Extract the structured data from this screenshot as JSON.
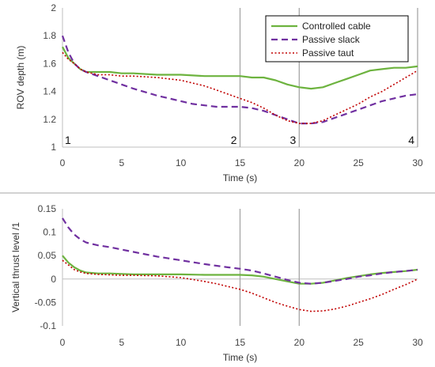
{
  "colors": {
    "controlled": "#6db33f",
    "slack": "#7030a0",
    "taut": "#c00000",
    "separator": "#a6a6a6",
    "marker_line": "#a6a6a6"
  },
  "chart_data": [
    {
      "type": "line",
      "xlabel": "Time (s)",
      "ylabel": "ROV depth (m)",
      "xlim": [
        0,
        30
      ],
      "ylim": [
        1,
        2
      ],
      "x_ticks": [
        "0",
        "5",
        "10",
        "15",
        "20",
        "25",
        "30"
      ],
      "y_ticks": [
        "1",
        "1.2",
        "1.4",
        "1.6",
        "1.8",
        "2"
      ],
      "legend": {
        "placement": "top-right",
        "entries": [
          "Controlled cable",
          "Passive slack",
          "Passive taut"
        ]
      },
      "vertical_markers": [
        {
          "x": 0,
          "label": "1"
        },
        {
          "x": 15,
          "label": "2"
        },
        {
          "x": 20,
          "label": "3"
        },
        {
          "x": 30,
          "label": "4"
        }
      ],
      "series": [
        {
          "name": "Controlled cable",
          "x": [
            0,
            0.5,
            1,
            1.5,
            2,
            3,
            4,
            5,
            6,
            8,
            10,
            12,
            14,
            15,
            16,
            17,
            18,
            19,
            20,
            21,
            22,
            23,
            24,
            25,
            26,
            27,
            28,
            29,
            30
          ],
          "values": [
            1.72,
            1.64,
            1.6,
            1.56,
            1.54,
            1.54,
            1.54,
            1.53,
            1.53,
            1.52,
            1.52,
            1.51,
            1.51,
            1.51,
            1.5,
            1.5,
            1.48,
            1.45,
            1.43,
            1.42,
            1.43,
            1.46,
            1.49,
            1.52,
            1.55,
            1.56,
            1.57,
            1.57,
            1.58
          ]
        },
        {
          "name": "Passive slack",
          "x": [
            0,
            0.5,
            1,
            1.5,
            2,
            3,
            4,
            5,
            6,
            8,
            10,
            11,
            12,
            13,
            14,
            15,
            16,
            17,
            18,
            19,
            20,
            21,
            22,
            23,
            24,
            25,
            26,
            27,
            28,
            29,
            30
          ],
          "values": [
            1.8,
            1.68,
            1.6,
            1.56,
            1.54,
            1.51,
            1.48,
            1.45,
            1.42,
            1.37,
            1.33,
            1.31,
            1.3,
            1.29,
            1.29,
            1.29,
            1.28,
            1.26,
            1.23,
            1.2,
            1.17,
            1.17,
            1.18,
            1.21,
            1.24,
            1.27,
            1.3,
            1.33,
            1.35,
            1.37,
            1.38
          ]
        },
        {
          "name": "Passive taut",
          "x": [
            0,
            0.5,
            1,
            1.5,
            2,
            3,
            4,
            5,
            6,
            8,
            10,
            12,
            13,
            14,
            15,
            16,
            17,
            18,
            19,
            20,
            21,
            22,
            23,
            24,
            25,
            26,
            27,
            28,
            29,
            30
          ],
          "values": [
            1.68,
            1.63,
            1.6,
            1.56,
            1.54,
            1.52,
            1.52,
            1.51,
            1.51,
            1.5,
            1.48,
            1.44,
            1.41,
            1.38,
            1.35,
            1.32,
            1.28,
            1.23,
            1.19,
            1.17,
            1.17,
            1.19,
            1.23,
            1.27,
            1.31,
            1.36,
            1.4,
            1.45,
            1.5,
            1.55
          ]
        }
      ]
    },
    {
      "type": "line",
      "xlabel": "Time (s)",
      "ylabel": "Vertical thrust level /1",
      "xlim": [
        0,
        30
      ],
      "ylim": [
        -0.1,
        0.15
      ],
      "x_ticks": [
        "0",
        "5",
        "10",
        "15",
        "20",
        "25",
        "30"
      ],
      "y_ticks": [
        "-0.1",
        "-0.05",
        "0",
        "0.05",
        "0.1",
        "0.15"
      ],
      "vertical_markers": [
        {
          "x": 15
        },
        {
          "x": 20
        }
      ],
      "series": [
        {
          "name": "Controlled cable",
          "x": [
            0,
            0.5,
            1,
            1.5,
            2,
            3,
            4,
            5,
            6,
            8,
            10,
            12,
            14,
            15,
            16,
            17,
            18,
            19,
            20,
            21,
            22,
            23,
            24,
            25,
            26,
            27,
            28,
            29,
            30
          ],
          "values": [
            0.05,
            0.035,
            0.025,
            0.018,
            0.014,
            0.012,
            0.012,
            0.011,
            0.01,
            0.01,
            0.01,
            0.009,
            0.009,
            0.009,
            0.008,
            0.005,
            0.0,
            -0.005,
            -0.01,
            -0.01,
            -0.008,
            -0.003,
            0.002,
            0.006,
            0.01,
            0.013,
            0.015,
            0.017,
            0.02
          ]
        },
        {
          "name": "Passive slack",
          "x": [
            0,
            0.5,
            1,
            1.5,
            2,
            3,
            4,
            5,
            6,
            8,
            10,
            12,
            14,
            15,
            16,
            17,
            18,
            19,
            20,
            21,
            22,
            23,
            24,
            25,
            26,
            27,
            28,
            29,
            30
          ],
          "values": [
            0.13,
            0.11,
            0.095,
            0.085,
            0.078,
            0.072,
            0.068,
            0.063,
            0.058,
            0.048,
            0.04,
            0.032,
            0.025,
            0.022,
            0.018,
            0.012,
            0.005,
            -0.002,
            -0.008,
            -0.01,
            -0.008,
            -0.004,
            0.0,
            0.005,
            0.008,
            0.012,
            0.015,
            0.017,
            0.02
          ]
        },
        {
          "name": "Passive taut",
          "x": [
            0,
            0.5,
            1,
            1.5,
            2,
            3,
            4,
            5,
            6,
            8,
            10,
            12,
            13,
            14,
            15,
            16,
            17,
            18,
            19,
            20,
            21,
            22,
            23,
            24,
            25,
            26,
            27,
            28,
            29,
            30
          ],
          "values": [
            0.04,
            0.03,
            0.02,
            0.015,
            0.012,
            0.01,
            0.009,
            0.008,
            0.008,
            0.007,
            0.003,
            -0.005,
            -0.01,
            -0.016,
            -0.022,
            -0.03,
            -0.04,
            -0.05,
            -0.058,
            -0.065,
            -0.069,
            -0.068,
            -0.064,
            -0.058,
            -0.05,
            -0.042,
            -0.033,
            -0.022,
            -0.012,
            0.0
          ]
        }
      ]
    }
  ]
}
